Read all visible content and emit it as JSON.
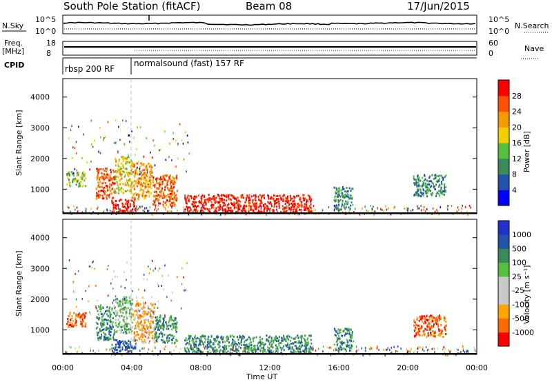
{
  "header": {
    "title": "South Pole Station (fitACF)",
    "beam": "Beam 08",
    "date": "17/Jun/2015"
  },
  "sky_panel": {
    "left_label": "N.Sky",
    "tick_top": "10^5",
    "tick_bottom": "10^0",
    "right_label": "N.Search"
  },
  "freq_panel": {
    "left_label_1": "Freq.",
    "left_label_2": "[MHz]",
    "tick_top": "18",
    "tick_bottom": "8",
    "right_tick_top": "60",
    "right_tick_bottom": "0",
    "right_label": "Nave"
  },
  "cpid_panel": {
    "label": "CPID",
    "segments": [
      {
        "start": 0,
        "end": 4,
        "text": "rbsp 200 RF"
      },
      {
        "start": 4,
        "end": 24,
        "text": "normalsound (fast) 157 RF"
      }
    ]
  },
  "colors": {
    "power": [
      "#0000ff",
      "#2255aa",
      "#3a8a5a",
      "#55c040",
      "#f0d000",
      "#f59a00",
      "#ff5000",
      "#ff0000"
    ],
    "velocity": [
      "#ff0000",
      "#ff6a00",
      "#ffa500",
      "#c8c8c8",
      "#c8c8c8",
      "#55c040",
      "#3a8a5a",
      "#2255aa",
      "#2233cc"
    ]
  },
  "chart_data": [
    {
      "type": "heatmap",
      "name": "power",
      "ylabel": "Slant Range [km]",
      "yticks": [
        1000,
        2000,
        3000,
        4000
      ],
      "ylim": [
        200,
        4600
      ],
      "xlim": [
        0,
        24
      ],
      "colorbar_label": "Power [dB]",
      "colorbar_ticks": [
        4,
        8,
        12,
        16,
        20,
        24,
        28
      ],
      "clim": [
        0,
        32
      ],
      "blobs": [
        {
          "t0": 0.2,
          "t1": 1.3,
          "r0": 1100,
          "r1": 1600,
          "level": 3
        },
        {
          "t0": 1.9,
          "t1": 3.0,
          "r0": 700,
          "r1": 1700,
          "level": 6
        },
        {
          "t0": 3.0,
          "t1": 4.0,
          "r0": 900,
          "r1": 2100,
          "level": 4
        },
        {
          "t0": 4.0,
          "t1": 5.2,
          "r0": 700,
          "r1": 1900,
          "level": 5
        },
        {
          "t0": 5.2,
          "t1": 6.6,
          "r0": 500,
          "r1": 1500,
          "level": 6
        },
        {
          "t0": 2.8,
          "t1": 4.2,
          "r0": 250,
          "r1": 700,
          "level": 7
        },
        {
          "t0": 7.0,
          "t1": 14.4,
          "r0": 250,
          "r1": 850,
          "level": 7
        },
        {
          "t0": 15.7,
          "t1": 16.8,
          "r0": 350,
          "r1": 1100,
          "level": 2
        },
        {
          "t0": 20.3,
          "t1": 22.2,
          "r0": 800,
          "r1": 1500,
          "level": 2
        }
      ],
      "fill_points": [
        {
          "t": 0.6,
          "r": 1500
        },
        {
          "t": 2.1,
          "r": 1300
        },
        {
          "t": 3.5,
          "r": 1700
        },
        {
          "t": 4.6,
          "r": 1200
        },
        {
          "t": 6.0,
          "r": 1000
        },
        {
          "t": 9.0,
          "r": 600
        },
        {
          "t": 11.0,
          "r": 500
        },
        {
          "t": 13.0,
          "r": 650
        },
        {
          "t": 15.9,
          "r": 900
        },
        {
          "t": 21.3,
          "r": 1100
        },
        {
          "t": 23.5,
          "r": 1800
        }
      ]
    },
    {
      "type": "heatmap",
      "name": "velocity",
      "ylabel": "Slant Range [km]",
      "yticks": [
        1000,
        2000,
        3000,
        4000
      ],
      "ylim": [
        200,
        4600
      ],
      "xlim": [
        0,
        24
      ],
      "xlabel": "Time UT",
      "xticks": [
        "00:00",
        "04:00",
        "08:00",
        "12:00",
        "16:00",
        "20:00",
        "00:00"
      ],
      "colorbar_label": "Velocity [m s⁻¹]",
      "colorbar_ticks": [
        "-1000",
        "-500",
        "-100",
        "-25",
        "25",
        "100",
        "500",
        "1000"
      ],
      "blobs": [
        {
          "t0": 0.2,
          "t1": 1.3,
          "r0": 1100,
          "r1": 1600,
          "level": 1
        },
        {
          "t0": 1.9,
          "t1": 3.0,
          "r0": 700,
          "r1": 1800,
          "level": 6
        },
        {
          "t0": 3.0,
          "t1": 4.0,
          "r0": 900,
          "r1": 2100,
          "level": 5
        },
        {
          "t0": 4.0,
          "t1": 5.3,
          "r0": 600,
          "r1": 1900,
          "level": 2
        },
        {
          "t0": 5.3,
          "t1": 6.6,
          "r0": 600,
          "r1": 1500,
          "level": 6
        },
        {
          "t0": 2.8,
          "t1": 4.2,
          "r0": 250,
          "r1": 700,
          "level": 7
        },
        {
          "t0": 7.0,
          "t1": 14.4,
          "r0": 250,
          "r1": 850,
          "level": 6
        },
        {
          "t0": 15.7,
          "t1": 16.8,
          "r0": 350,
          "r1": 1100,
          "level": 6
        },
        {
          "t0": 20.3,
          "t1": 22.2,
          "r0": 800,
          "r1": 1500,
          "level": 1
        }
      ]
    }
  ],
  "time_axis": {
    "label": "Time UT",
    "ticks": [
      "00:00",
      "04:00",
      "08:00",
      "12:00",
      "16:00",
      "20:00",
      "00:00"
    ]
  }
}
